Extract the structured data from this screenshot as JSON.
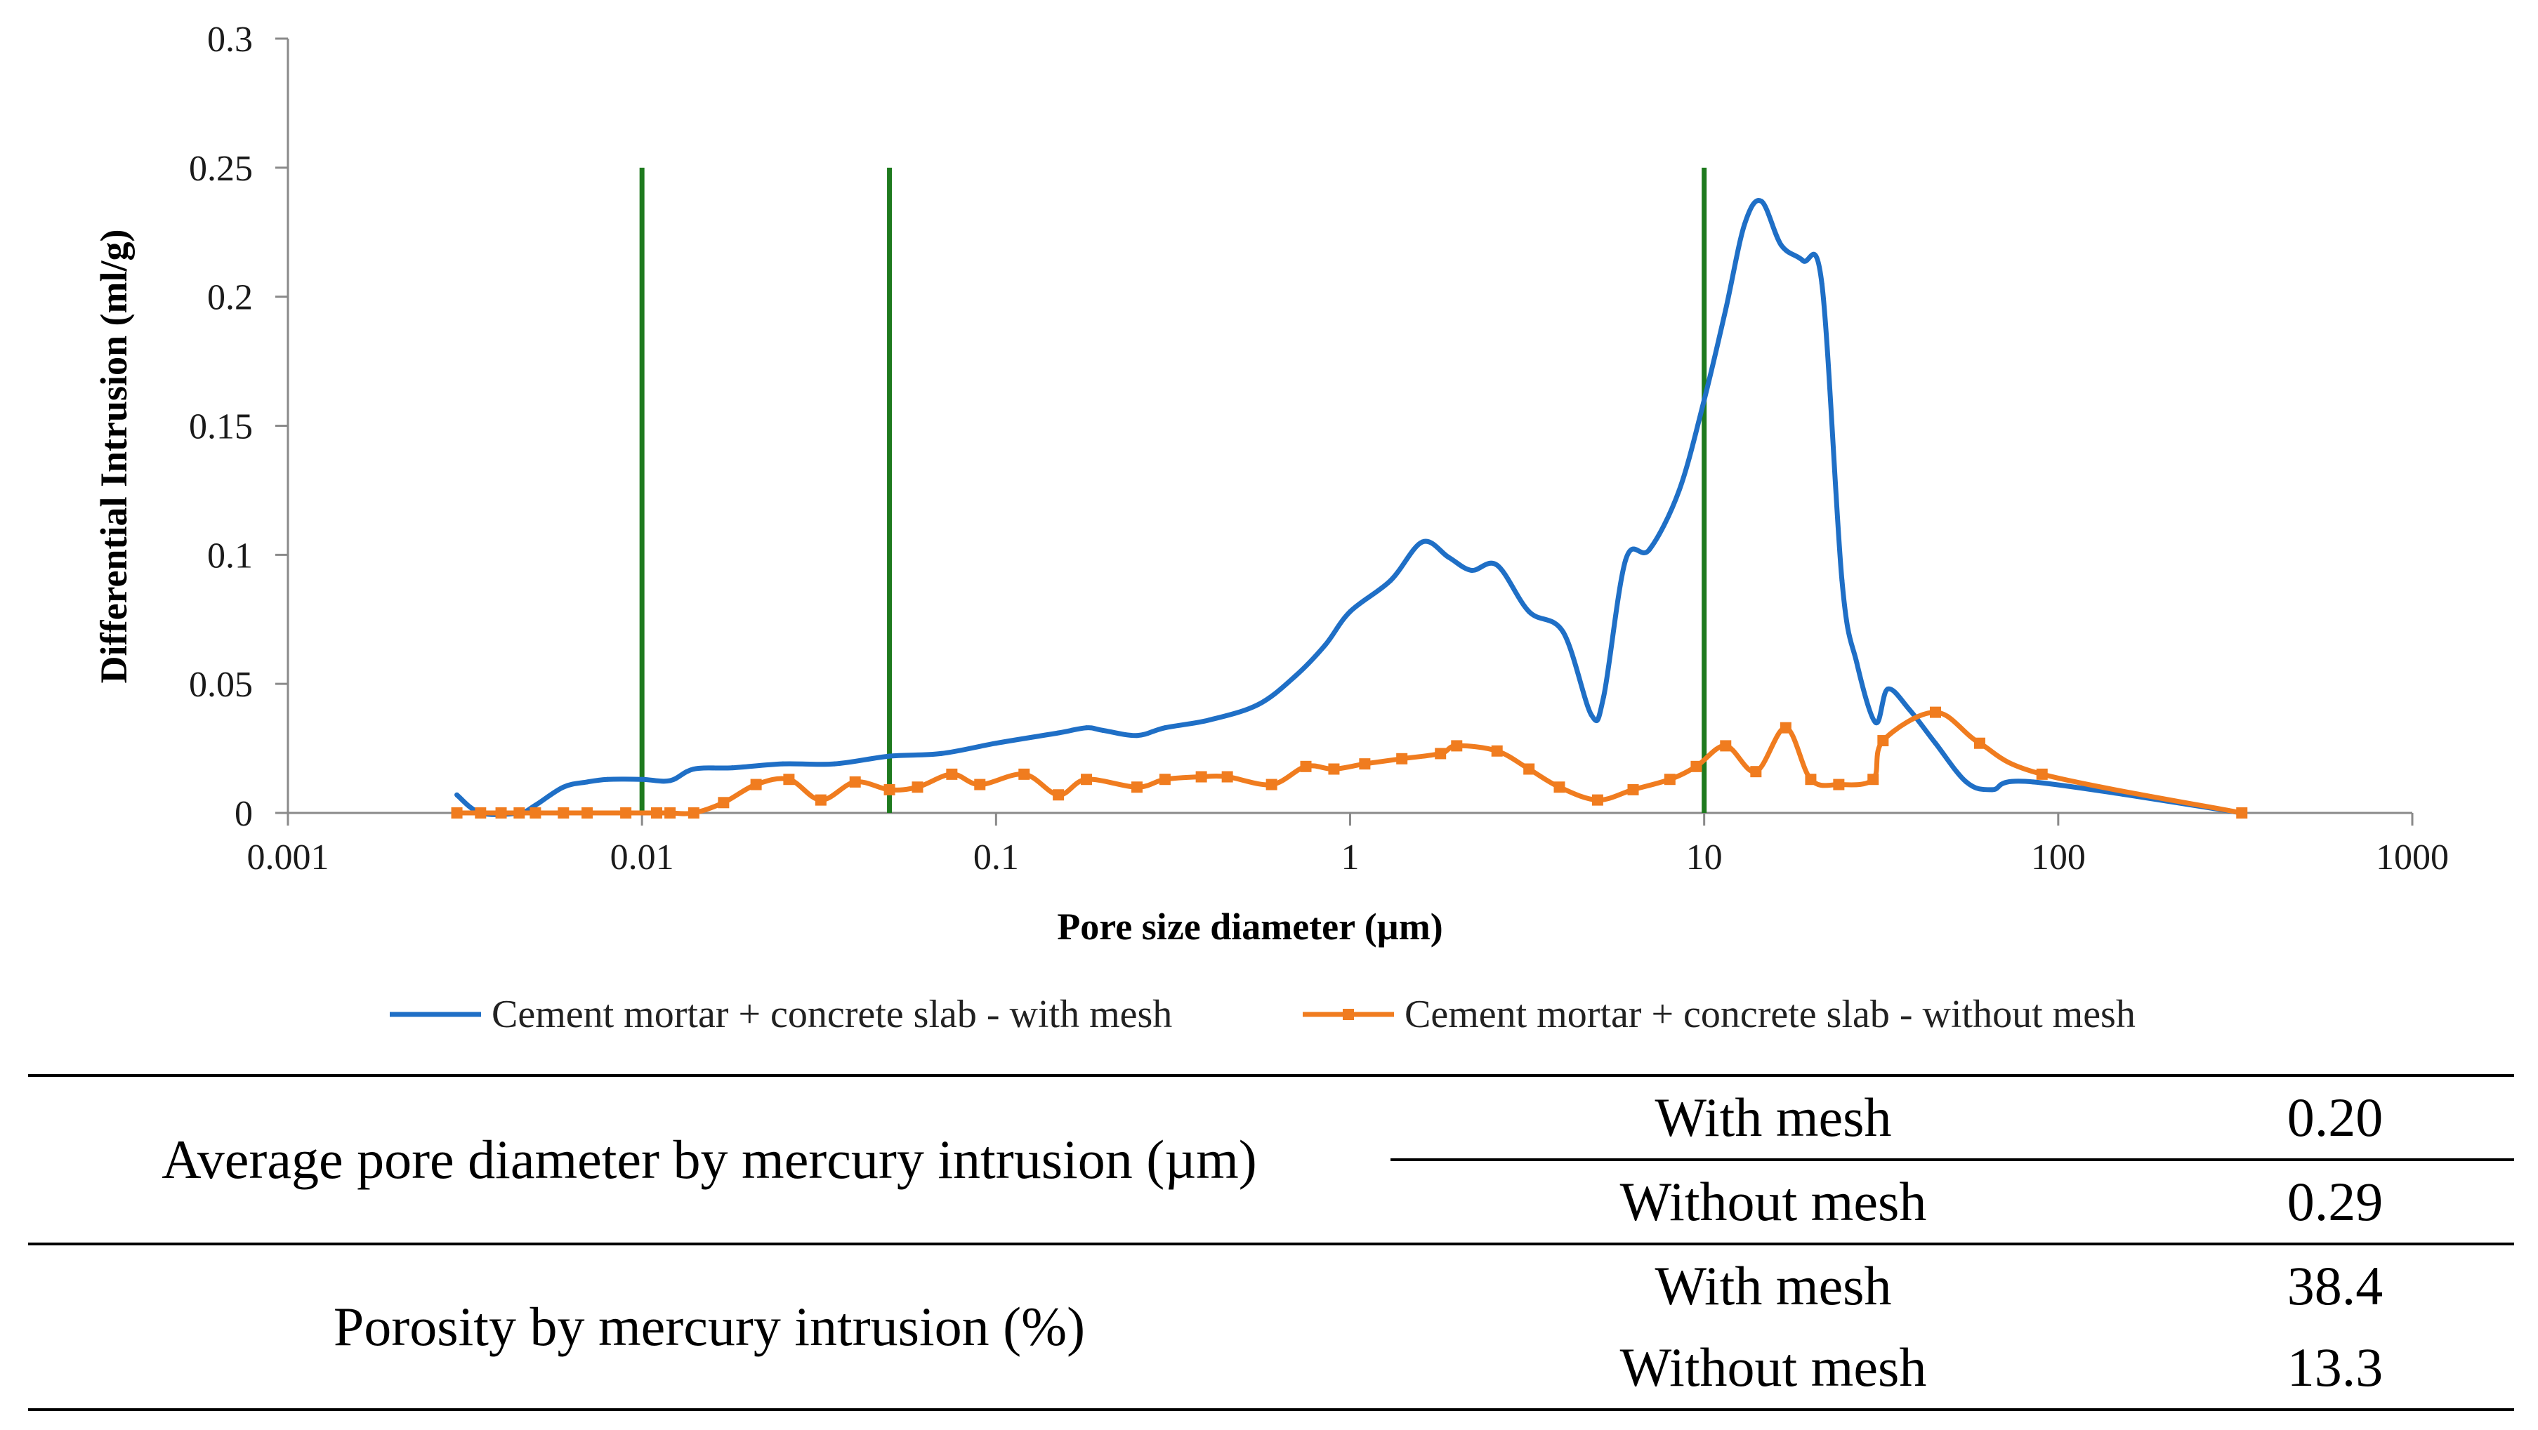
{
  "chart_data": {
    "type": "line",
    "title": "",
    "xlabel": "Pore size diameter (µm)",
    "ylabel": "Differential Intrusion  (ml/g)",
    "xscale": "log",
    "xlim": [
      0.001,
      1000
    ],
    "ylim": [
      0,
      0.3
    ],
    "x_ticks": [
      0.001,
      0.01,
      0.1,
      1,
      10,
      100,
      1000
    ],
    "x_tick_labels": [
      "0.001",
      "0.01",
      "0.1",
      "1",
      "10",
      "100",
      "1000"
    ],
    "y_ticks": [
      0,
      0.05,
      0.1,
      0.15,
      0.2,
      0.25,
      0.3
    ],
    "y_tick_labels": [
      "0",
      "0.05",
      "0.1",
      "0.15",
      "0.2",
      "0.25",
      "0.3"
    ],
    "legend_position": "bottom",
    "reference_lines": [
      {
        "x": 0.01,
        "y_max": 0.25,
        "color": "#1e7a1e"
      },
      {
        "x": 0.05,
        "y_max": 0.25,
        "color": "#1e7a1e"
      },
      {
        "x": 10,
        "y_max": 0.25,
        "color": "#1e7a1e"
      }
    ],
    "series": [
      {
        "name": "Cement mortar + concrete slab - with mesh",
        "color": "#1f6fc6",
        "marker": "dot",
        "points": [
          [
            0.003,
            0.007
          ],
          [
            0.0035,
            0.0
          ],
          [
            0.0045,
            0.0
          ],
          [
            0.005,
            0.003
          ],
          [
            0.006,
            0.01
          ],
          [
            0.007,
            0.012
          ],
          [
            0.008,
            0.013
          ],
          [
            0.01,
            0.013
          ],
          [
            0.012,
            0.0125
          ],
          [
            0.014,
            0.017
          ],
          [
            0.018,
            0.0175
          ],
          [
            0.025,
            0.019
          ],
          [
            0.035,
            0.019
          ],
          [
            0.05,
            0.022
          ],
          [
            0.07,
            0.023
          ],
          [
            0.1,
            0.027
          ],
          [
            0.15,
            0.031
          ],
          [
            0.18,
            0.033
          ],
          [
            0.2,
            0.032
          ],
          [
            0.25,
            0.03
          ],
          [
            0.3,
            0.033
          ],
          [
            0.4,
            0.036
          ],
          [
            0.55,
            0.042
          ],
          [
            0.7,
            0.053
          ],
          [
            0.85,
            0.065
          ],
          [
            1.0,
            0.078
          ],
          [
            1.3,
            0.09
          ],
          [
            1.6,
            0.105
          ],
          [
            1.9,
            0.099
          ],
          [
            2.2,
            0.094
          ],
          [
            2.6,
            0.096
          ],
          [
            3.2,
            0.078
          ],
          [
            4.0,
            0.07
          ],
          [
            4.8,
            0.038
          ],
          [
            5.2,
            0.045
          ],
          [
            6.0,
            0.098
          ],
          [
            7.0,
            0.102
          ],
          [
            8.5,
            0.125
          ],
          [
            10.0,
            0.16
          ],
          [
            11.5,
            0.195
          ],
          [
            13.0,
            0.228
          ],
          [
            14.5,
            0.237
          ],
          [
            16.5,
            0.22
          ],
          [
            19.0,
            0.214
          ],
          [
            21.5,
            0.205
          ],
          [
            24.5,
            0.09
          ],
          [
            27.0,
            0.058
          ],
          [
            30.5,
            0.035
          ],
          [
            33.0,
            0.048
          ],
          [
            38.0,
            0.04
          ],
          [
            45.0,
            0.027
          ],
          [
            55.0,
            0.012
          ],
          [
            65.0,
            0.009
          ],
          [
            85.0,
            0.012
          ],
          [
            330.0,
            0.0
          ]
        ]
      },
      {
        "name": "Cement mortar + concrete slab - without mesh",
        "color": "#f07c1f",
        "marker": "square",
        "points": [
          [
            0.003,
            0.0
          ],
          [
            0.0035,
            0.0
          ],
          [
            0.004,
            0.0
          ],
          [
            0.0045,
            0.0
          ],
          [
            0.005,
            0.0
          ],
          [
            0.006,
            0.0
          ],
          [
            0.007,
            0.0
          ],
          [
            0.009,
            0.0
          ],
          [
            0.011,
            0.0
          ],
          [
            0.012,
            0.0
          ],
          [
            0.014,
            0.0
          ],
          [
            0.017,
            0.004
          ],
          [
            0.021,
            0.011
          ],
          [
            0.026,
            0.013
          ],
          [
            0.032,
            0.005
          ],
          [
            0.04,
            0.012
          ],
          [
            0.05,
            0.009
          ],
          [
            0.06,
            0.01
          ],
          [
            0.075,
            0.015
          ],
          [
            0.09,
            0.011
          ],
          [
            0.12,
            0.015
          ],
          [
            0.15,
            0.007
          ],
          [
            0.18,
            0.013
          ],
          [
            0.25,
            0.01
          ],
          [
            0.3,
            0.013
          ],
          [
            0.38,
            0.014
          ],
          [
            0.45,
            0.014
          ],
          [
            0.6,
            0.011
          ],
          [
            0.75,
            0.018
          ],
          [
            0.9,
            0.017
          ],
          [
            1.1,
            0.019
          ],
          [
            1.4,
            0.021
          ],
          [
            1.8,
            0.023
          ],
          [
            2.0,
            0.026
          ],
          [
            2.6,
            0.024
          ],
          [
            3.2,
            0.017
          ],
          [
            3.9,
            0.01
          ],
          [
            5.0,
            0.005
          ],
          [
            6.3,
            0.009
          ],
          [
            8.0,
            0.013
          ],
          [
            9.5,
            0.018
          ],
          [
            11.5,
            0.026
          ],
          [
            14.0,
            0.016
          ],
          [
            17.0,
            0.033
          ],
          [
            20.0,
            0.013
          ],
          [
            24.0,
            0.011
          ],
          [
            30.0,
            0.013
          ],
          [
            32.0,
            0.028
          ],
          [
            45.0,
            0.039
          ],
          [
            60.0,
            0.027
          ],
          [
            90.0,
            0.015
          ],
          [
            330.0,
            0.0
          ]
        ]
      }
    ]
  },
  "summary_table": {
    "rows": [
      {
        "metric": "Average pore diameter by mercury intrusion (µm)",
        "cond": "With mesh",
        "value": "0.20"
      },
      {
        "metric": "",
        "cond": "Without mesh",
        "value": "0.29"
      },
      {
        "metric": "Porosity by mercury intrusion (%)",
        "cond": "With mesh",
        "value": "38.4"
      },
      {
        "metric": "",
        "cond": "Without mesh",
        "value": "13.3"
      }
    ]
  }
}
